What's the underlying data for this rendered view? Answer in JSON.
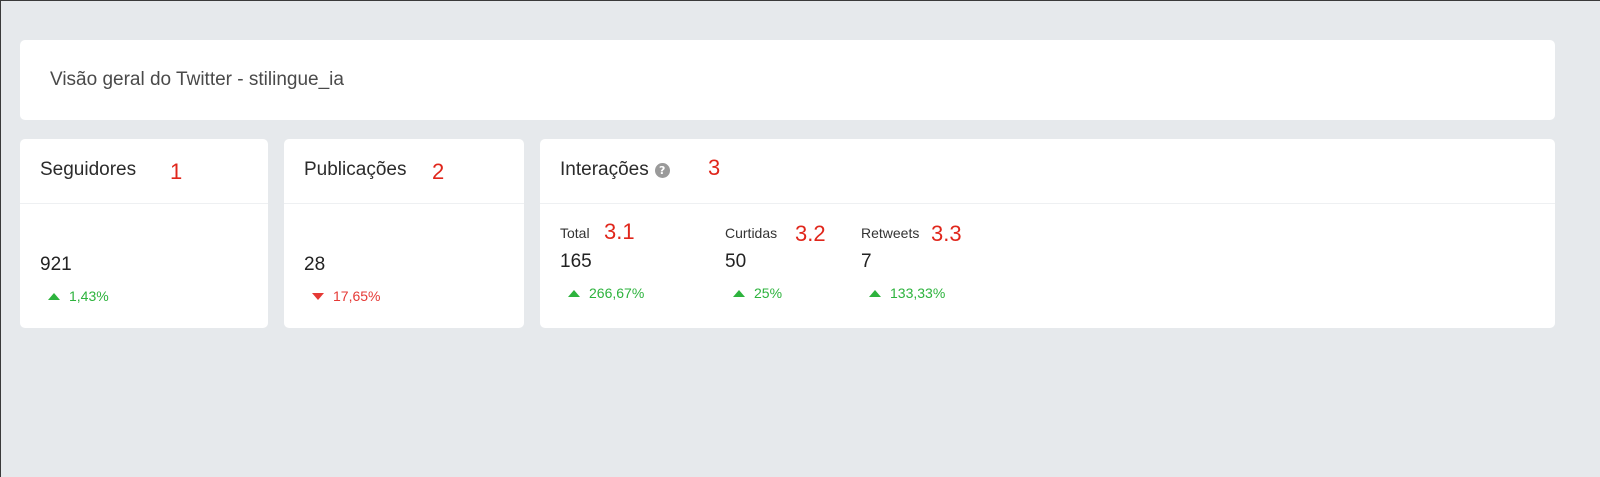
{
  "header": {
    "title": "Visão geral do Twitter - stilingue_ia"
  },
  "seguidores": {
    "title": "Seguidores",
    "annotation": "1",
    "value": "921",
    "delta": "1,43%",
    "direction": "up"
  },
  "publicacoes": {
    "title": "Publicações",
    "annotation": "2",
    "value": "28",
    "delta": "17,65%",
    "direction": "down"
  },
  "interacoes": {
    "title": "Interações",
    "annotation": "3",
    "help_icon": "question-circle-icon",
    "metrics": [
      {
        "label": "Total",
        "annotation": "3.1",
        "value": "165",
        "delta": "266,67%",
        "direction": "up"
      },
      {
        "label": "Curtidas",
        "annotation": "3.2",
        "value": "50",
        "delta": "25%",
        "direction": "up"
      },
      {
        "label": "Retweets",
        "annotation": "3.3",
        "value": "7",
        "delta": "133,33%",
        "direction": "up"
      }
    ]
  },
  "colors": {
    "background": "#e6e9ec",
    "card": "#ffffff",
    "positive": "#2db33d",
    "negative": "#e53935",
    "annotation": "#e0261b"
  }
}
